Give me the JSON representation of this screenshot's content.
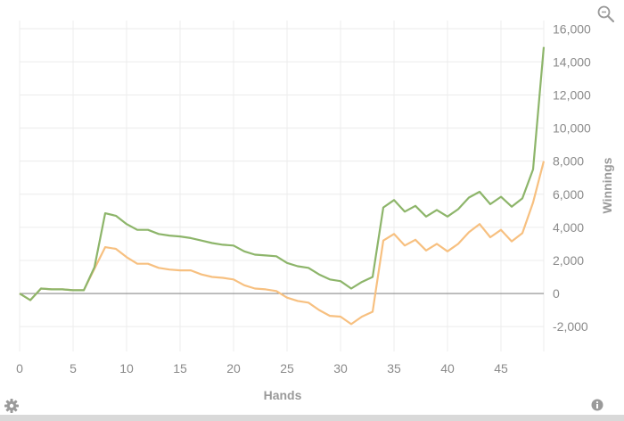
{
  "chart_data": {
    "type": "line",
    "xlabel": "Hands",
    "ylabel": "Winnings",
    "xlim": [
      0,
      49
    ],
    "ylim": [
      -3500,
      16500
    ],
    "xticks": [
      0,
      5,
      10,
      15,
      20,
      25,
      30,
      35,
      40,
      45
    ],
    "yticks": [
      -2000,
      0,
      2000,
      4000,
      6000,
      8000,
      10000,
      12000,
      14000,
      16000
    ],
    "ytick_labels": [
      "-2,000",
      "0",
      "2,000",
      "4,000",
      "6,000",
      "8,000",
      "10,000",
      "12,000",
      "14,000",
      "16,000"
    ],
    "grid": true,
    "zero_line": true,
    "series": [
      {
        "color": "#8db56a",
        "x": [
          0,
          1,
          2,
          3,
          4,
          5,
          6,
          7,
          8,
          9,
          10,
          11,
          12,
          13,
          14,
          15,
          16,
          17,
          18,
          19,
          20,
          21,
          22,
          23,
          24,
          25,
          26,
          27,
          28,
          29,
          30,
          31,
          32,
          33,
          34,
          35,
          36,
          37,
          38,
          39,
          40,
          41,
          42,
          43,
          44,
          45,
          46,
          47,
          48,
          49
        ],
        "y": [
          0,
          -400,
          300,
          250,
          250,
          200,
          200,
          1600,
          4850,
          4700,
          4200,
          3850,
          3850,
          3600,
          3500,
          3450,
          3350,
          3200,
          3050,
          2950,
          2900,
          2550,
          2350,
          2300,
          2250,
          1850,
          1650,
          1550,
          1150,
          850,
          750,
          300,
          700,
          1000,
          5200,
          5650,
          4950,
          5300,
          4650,
          5050,
          4650,
          5100,
          5800,
          6150,
          5400,
          5850,
          5250,
          5750,
          7500,
          14900
        ]
      },
      {
        "color": "#f7c080",
        "x": [
          0,
          1,
          2,
          3,
          4,
          5,
          6,
          7,
          8,
          9,
          10,
          11,
          12,
          13,
          14,
          15,
          16,
          17,
          18,
          19,
          20,
          21,
          22,
          23,
          24,
          25,
          26,
          27,
          28,
          29,
          30,
          31,
          32,
          33,
          34,
          35,
          36,
          37,
          38,
          39,
          40,
          41,
          42,
          43,
          44,
          45,
          46,
          47,
          48,
          49
        ],
        "y": [
          0,
          -400,
          300,
          250,
          250,
          200,
          200,
          1500,
          2800,
          2700,
          2200,
          1800,
          1800,
          1550,
          1450,
          1400,
          1400,
          1150,
          1000,
          950,
          850,
          500,
          300,
          250,
          150,
          -250,
          -450,
          -550,
          -1000,
          -1350,
          -1400,
          -1850,
          -1400,
          -1100,
          3200,
          3600,
          2900,
          3250,
          2600,
          3000,
          2550,
          3000,
          3700,
          4200,
          3400,
          3850,
          3150,
          3650,
          5500,
          8000
        ]
      }
    ]
  },
  "icons": {
    "zoom": "magnifier-icon",
    "settings": "gear-icon",
    "info": "info-icon"
  }
}
